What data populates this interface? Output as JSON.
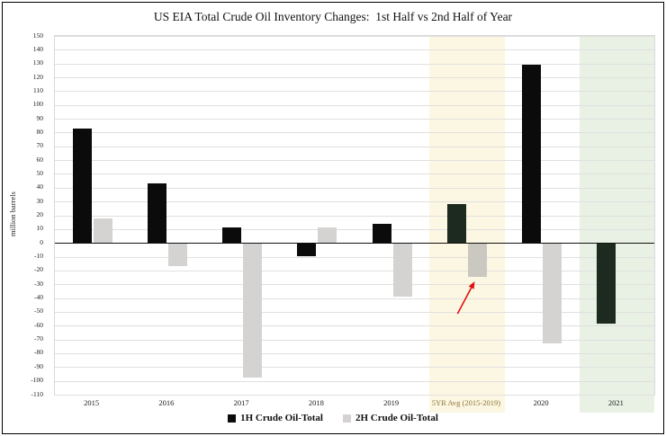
{
  "title": "US EIA Total Crude Oil Inventory Changes:  1st Half vs 2nd Half of Year",
  "y_axis_title": "million barrels",
  "chart_data": {
    "type": "bar",
    "title": "US EIA Total Crude Oil Inventory Changes: 1st Half vs 2nd Half of Year",
    "xlabel": "",
    "ylabel": "million barrels",
    "categories": [
      "2015",
      "2016",
      "2017",
      "2018",
      "2019",
      "5YR Avg (2015-2019)",
      "2020",
      "2021"
    ],
    "series": [
      {
        "name": "1H Crude Oil-Total",
        "color": "#0b0b0b",
        "overrides": {
          "5": "#1d2a1f",
          "7": "#1d2a1f"
        },
        "values": [
          83,
          43,
          11,
          -9,
          14,
          28,
          129,
          -58
        ]
      },
      {
        "name": "2H Crude Oil-Total",
        "color": "#d4d3d1",
        "overrides": {
          "5": "#cbc8c1"
        },
        "values": [
          18,
          -16,
          -97,
          11,
          -38,
          -24,
          -72,
          null
        ]
      }
    ],
    "ylim": [
      -110,
      150
    ],
    "ytick_step": 10,
    "grid": true,
    "legend_position": "bottom",
    "xlabel_special": {
      "index": 5,
      "color": "#8e7339"
    }
  },
  "highlights": [
    {
      "index": 5,
      "color": "#fcf7e2",
      "label": "5YR Avg highlight band"
    },
    {
      "index": 7,
      "color": "#e8f1e4",
      "label": "2021 highlight band"
    }
  ],
  "annotation": {
    "type": "arrow",
    "color": "#e01010",
    "target_category": 5,
    "target_series": 1
  }
}
